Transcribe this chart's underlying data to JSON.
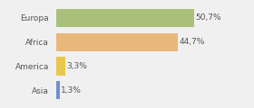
{
  "categories": [
    "Europa",
    "Africa",
    "America",
    "Asia"
  ],
  "values": [
    50.7,
    44.7,
    3.3,
    1.3
  ],
  "bar_colors": [
    "#a8c07a",
    "#e8b87a",
    "#e8c84a",
    "#7090cc"
  ],
  "labels": [
    "50,7%",
    "44,7%",
    "3,3%",
    "1,3%"
  ],
  "background_color": "#f0f0f0",
  "xlim": [
    0,
    68
  ],
  "bar_height": 0.75,
  "label_fontsize": 6.5,
  "tick_fontsize": 6.5,
  "figsize": [
    2.8,
    1.2
  ],
  "dpi": 100
}
